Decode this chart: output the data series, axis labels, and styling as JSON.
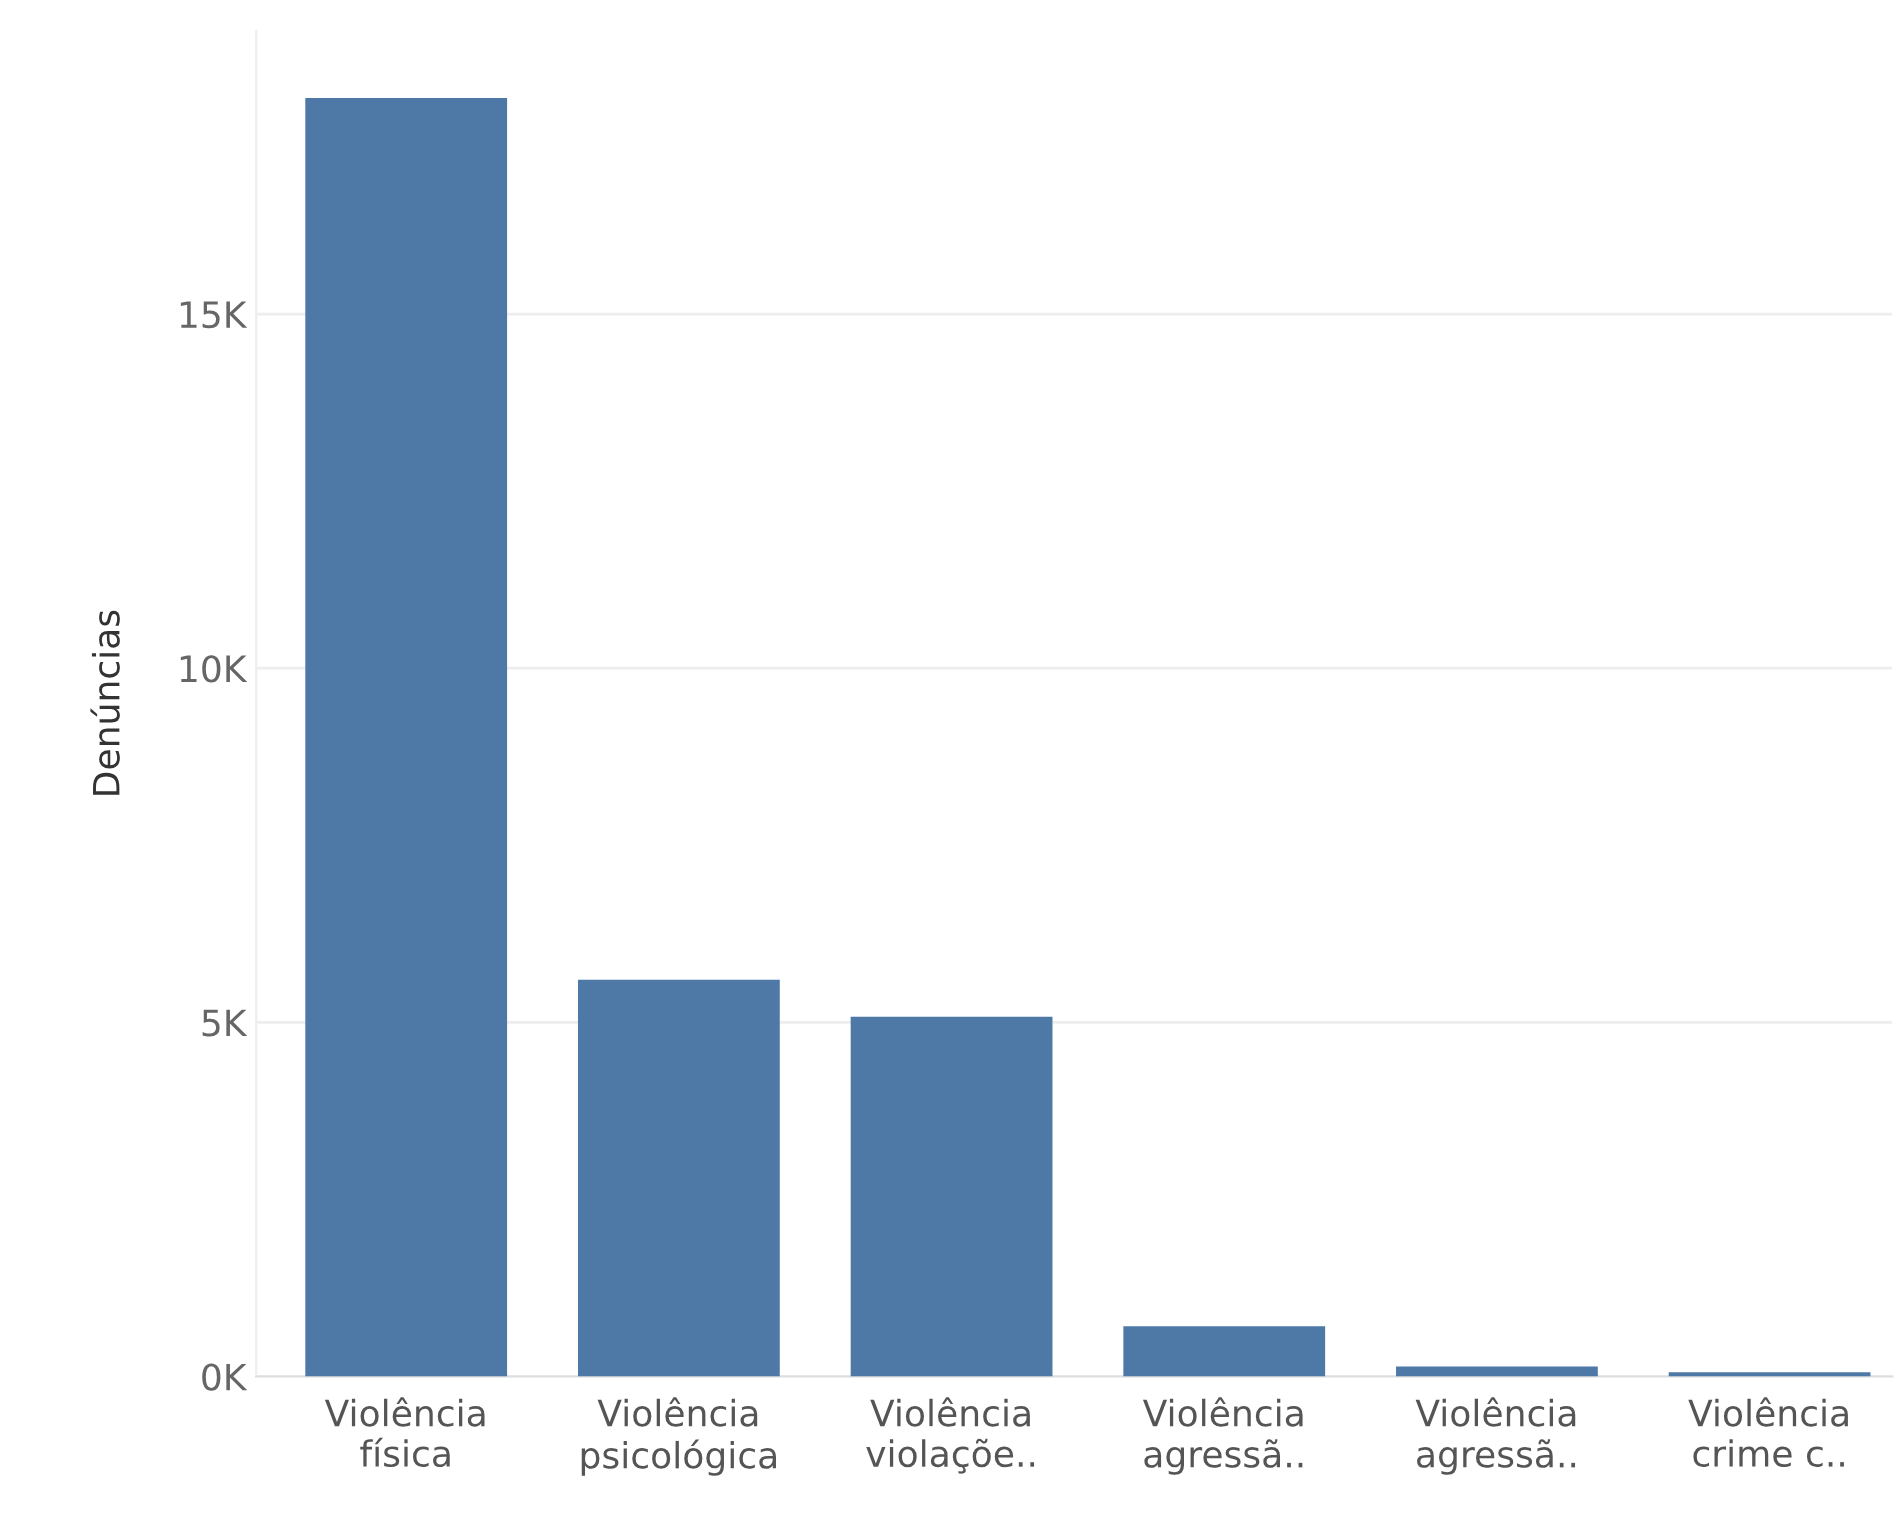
{
  "chart_data": {
    "type": "bar",
    "ylabel": "Denúncias",
    "categories": [
      "Violência\nfísica",
      "Violência\npsicológica",
      "Violência\nviolaçõe..",
      "Violência\nagressã..",
      "Violência\nagressã..",
      "Violência\ncrime c.."
    ],
    "values": [
      18050,
      5600,
      5080,
      710,
      140,
      60
    ],
    "color": "#4e79a7",
    "ylim": [
      0,
      19000
    ],
    "yticks": [
      {
        "value": 0,
        "label": "0K"
      },
      {
        "value": 5000,
        "label": "5K"
      },
      {
        "value": 10000,
        "label": "10K"
      },
      {
        "value": 15000,
        "label": "15K"
      }
    ],
    "grid": "y"
  }
}
